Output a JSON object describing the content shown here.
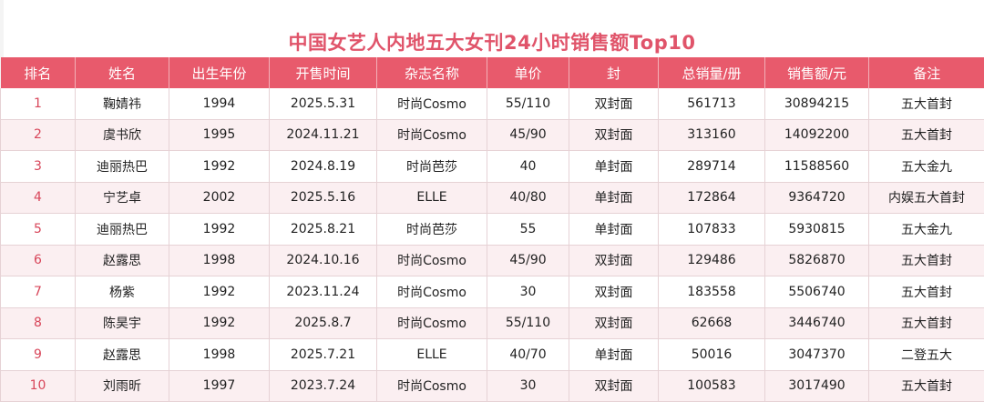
{
  "title": "中国女艺人内地五大女刊24小时销售额Top10",
  "headers": [
    "排名",
    "姓名",
    "出生年份",
    "开售时间",
    "杂志名称",
    "单价",
    "封",
    "总销量/册",
    "销售额/元",
    "备注"
  ],
  "rows": [
    [
      "1",
      "鞠婧祎",
      "1994",
      "2025.5.31",
      "时尚Cosmo",
      "55/110",
      "双封面",
      "561713",
      "30894215",
      "五大首封"
    ],
    [
      "2",
      "虞书欣",
      "1995",
      "2024.11.21",
      "时尚Cosmo",
      "45/90",
      "双封面",
      "313160",
      "14092200",
      "五大首封"
    ],
    [
      "3",
      "迪丽热巴",
      "1992",
      "2024.8.19",
      "时尚芭莎",
      "40",
      "单封面",
      "289714",
      "11588560",
      "五大金九"
    ],
    [
      "4",
      "宁艺卓",
      "2002",
      "2025.5.16",
      "ELLE",
      "40/80",
      "单封面",
      "172864",
      "9364720",
      "内娱五大首封"
    ],
    [
      "5",
      "迪丽热巴",
      "1992",
      "2025.8.21",
      "时尚芭莎",
      "55",
      "单封面",
      "107833",
      "5930815",
      "五大金九"
    ],
    [
      "6",
      "赵露思",
      "1998",
      "2024.10.16",
      "时尚Cosmo",
      "45/90",
      "双封面",
      "129486",
      "5826870",
      "五大首封"
    ],
    [
      "7",
      "杨紫",
      "1992",
      "2023.11.24",
      "时尚Cosmo",
      "30",
      "双封面",
      "183558",
      "5506740",
      "五大首封"
    ],
    [
      "8",
      "陈昊宇",
      "1992",
      "2025.8.7",
      "时尚Cosmo",
      "55/110",
      "双封面",
      "62668",
      "3446740",
      "五大首封"
    ],
    [
      "9",
      "赵露思",
      "1998",
      "2025.7.21",
      "ELLE",
      "40/70",
      "单封面",
      "50016",
      "3047370",
      "二登五大"
    ],
    [
      "10",
      "刘雨昕",
      "1997",
      "2023.7.24",
      "时尚Cosmo",
      "30",
      "双封面",
      "100583",
      "3017490",
      "五大首封"
    ]
  ]
}
